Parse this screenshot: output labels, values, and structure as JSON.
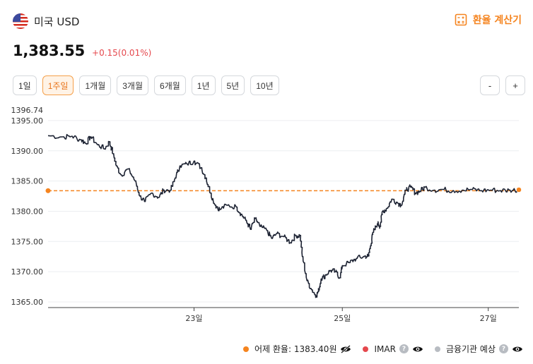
{
  "header": {
    "currency_name": "미국 USD",
    "calc_label": "환율 계산기"
  },
  "quote": {
    "price": "1,383.55",
    "change": "+0.15(0.01%)"
  },
  "periods": [
    "1일",
    "1주일",
    "1개월",
    "3개월",
    "6개월",
    "1년",
    "5년",
    "10년"
  ],
  "active_period": "1주일",
  "zoom": {
    "minus": "-",
    "plus": "+"
  },
  "colors": {
    "accent": "#f5841f",
    "up": "#e5484d",
    "line": "#1d2333",
    "imar": "#e5484d",
    "bank": "#b8bcc2"
  },
  "chart_data": {
    "type": "line",
    "x_tick_labels": [
      "23일",
      "25일",
      "27일"
    ],
    "y_tick_labels": [
      "1396.74",
      "1395.00",
      "1390.00",
      "1385.00",
      "1380.00",
      "1375.00",
      "1370.00",
      "1365.00"
    ],
    "ylim": [
      1365,
      1396.74
    ],
    "xlim": [
      0,
      100
    ],
    "x_ticks": [
      31,
      62.5,
      93.5
    ],
    "reference_line": {
      "name": "어제 환율",
      "value": 1383.4
    },
    "series": [
      {
        "values": [
          [
            0,
            1392.5
          ],
          [
            3,
            1392.3
          ],
          [
            5,
            1392.4
          ],
          [
            7,
            1391.8
          ],
          [
            8,
            1391.2
          ],
          [
            9,
            1392.3
          ],
          [
            10.5,
            1391.0
          ],
          [
            12,
            1390.3
          ],
          [
            13,
            1391.5
          ],
          [
            13.8,
            1389.5
          ],
          [
            14.5,
            1387.5
          ],
          [
            15.5,
            1386.0
          ],
          [
            17,
            1387.0
          ],
          [
            18.5,
            1385.0
          ],
          [
            19.5,
            1382.5
          ],
          [
            20.5,
            1381.6
          ],
          [
            22,
            1383.0
          ],
          [
            23.5,
            1382.3
          ],
          [
            24.5,
            1383.5
          ],
          [
            26,
            1383.5
          ],
          [
            27,
            1385.5
          ],
          [
            28,
            1387.5
          ],
          [
            29.5,
            1387.8
          ],
          [
            31,
            1388.3
          ],
          [
            32.5,
            1387.2
          ],
          [
            33.5,
            1385.5
          ],
          [
            34.5,
            1383.0
          ],
          [
            35.5,
            1381.0
          ],
          [
            36.5,
            1380.3
          ],
          [
            38,
            1381.0
          ],
          [
            40,
            1380.7
          ],
          [
            41,
            1379.5
          ],
          [
            42,
            1378.5
          ],
          [
            43,
            1377.0
          ],
          [
            44,
            1378.8
          ],
          [
            45,
            1377.5
          ],
          [
            46.5,
            1376.8
          ],
          [
            47.5,
            1375.5
          ],
          [
            48.5,
            1376.3
          ],
          [
            50,
            1375.8
          ],
          [
            51.5,
            1374.8
          ],
          [
            52.5,
            1376.0
          ],
          [
            53.5,
            1376.0
          ],
          [
            54,
            1372.5
          ],
          [
            55,
            1368.5
          ],
          [
            56,
            1367.0
          ],
          [
            57,
            1366.0
          ],
          [
            57.5,
            1367.0
          ],
          [
            58,
            1368.8
          ],
          [
            59,
            1369.5
          ],
          [
            60,
            1370.2
          ],
          [
            61,
            1370.0
          ],
          [
            62,
            1369.0
          ],
          [
            62.5,
            1371.0
          ],
          [
            64,
            1371.5
          ],
          [
            65.5,
            1372.2
          ],
          [
            67,
            1372.5
          ],
          [
            68,
            1372.6
          ],
          [
            68.5,
            1374.3
          ],
          [
            69,
            1376.5
          ],
          [
            70,
            1378.0
          ],
          [
            70.5,
            1377.5
          ],
          [
            71,
            1380.0
          ],
          [
            72,
            1380.5
          ],
          [
            73,
            1382.0
          ],
          [
            74,
            1381.5
          ],
          [
            75,
            1381.0
          ],
          [
            76,
            1383.5
          ],
          [
            77,
            1384.0
          ],
          [
            78,
            1383.0
          ],
          [
            79,
            1383.3
          ],
          [
            80,
            1384.0
          ],
          [
            82,
            1383.5
          ],
          [
            84,
            1383.6
          ],
          [
            86,
            1383.4
          ],
          [
            88,
            1383.5
          ],
          [
            90,
            1383.6
          ],
          [
            92,
            1383.4
          ],
          [
            94,
            1383.5
          ],
          [
            96,
            1383.4
          ],
          [
            98,
            1383.5
          ],
          [
            100,
            1383.55
          ]
        ]
      }
    ]
  },
  "legend": {
    "yesterday": "어제 환율: 1383.40원",
    "imar": "IMAR",
    "bank": "금융기관 예상"
  }
}
